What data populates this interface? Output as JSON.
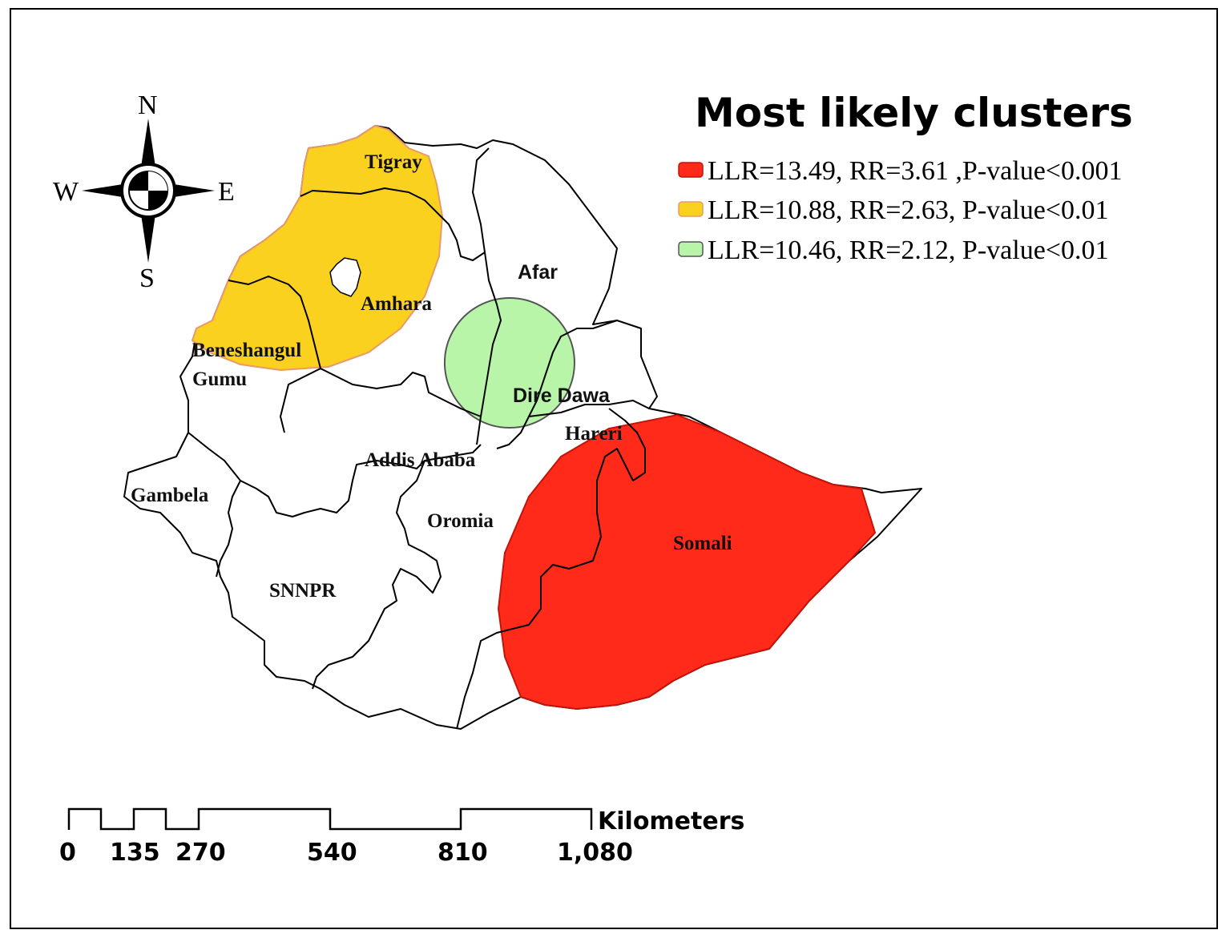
{
  "legend": {
    "title": "Most likely clusters",
    "items": [
      {
        "label": "LLR=13.49, RR=3.61 ,P-value<0.001",
        "color": "#ff2a1a"
      },
      {
        "label": "LLR=10.88, RR=2.63, P-value<0.01",
        "color": "#fbd11f"
      },
      {
        "label": "LLR=10.46, RR=2.12, P-value<0.01",
        "color": "#b8f5a8"
      }
    ]
  },
  "compass": {
    "north": "N",
    "south": "S",
    "east": "E",
    "west": "W"
  },
  "regions": {
    "tigray": "Tigray",
    "afar": "Afar",
    "amhara": "Amhara",
    "beneshangul_1": "Beneshangul",
    "beneshangul_2": "Gumu",
    "dire_dawa": "Dire Dawa",
    "hareri": "Hareri",
    "addis_ababa": "Addis Ababa",
    "gambela": "Gambela",
    "oromia": "Oromia",
    "somali": "Somali",
    "snnpr": "SNNPR"
  },
  "scale_bar": {
    "unit": "Kilometers",
    "ticks": [
      "0",
      "135",
      "270",
      "540",
      "810",
      "1,080"
    ]
  }
}
